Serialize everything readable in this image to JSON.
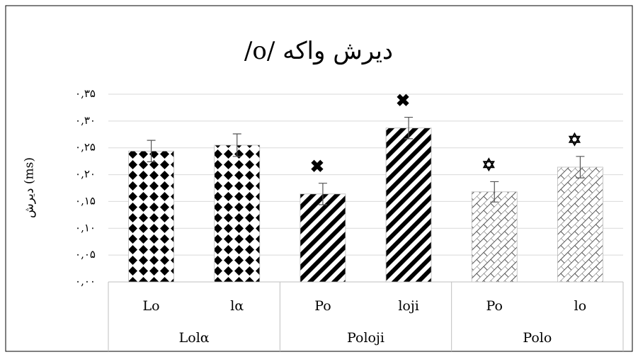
{
  "chart_data": {
    "type": "bar",
    "title": "دیرش واکه /o/",
    "y_label": "دیرش (ms)",
    "categories": [
      "Lo",
      "lα",
      "Po",
      "loji",
      "Po",
      "lo"
    ],
    "values": [
      0.244,
      0.255,
      0.164,
      0.287,
      0.168,
      0.214
    ],
    "errors": [
      0.02,
      0.021,
      0.02,
      0.02,
      0.019,
      0.02
    ],
    "annotations": [
      null,
      null,
      "✖",
      "✖",
      "✡",
      "✡"
    ],
    "patterns": [
      "diamond",
      "diamond",
      "stripe",
      "stripe",
      "lattice",
      "lattice"
    ],
    "groups": [
      {
        "label": "Lolα",
        "span": 2
      },
      {
        "label": "Poloji",
        "span": 2
      },
      {
        "label": "Polo",
        "span": 2
      }
    ],
    "color": "#000000",
    "ylim": [
      0,
      0.35
    ],
    "yticks": [
      {
        "value": 0,
        "label": "۰,۰۰"
      },
      {
        "value": 0.05,
        "label": "۰,۰۵"
      },
      {
        "value": 0.1,
        "label": "۰,۱۰"
      },
      {
        "value": 0.15,
        "label": "۰,۱۵"
      },
      {
        "value": 0.2,
        "label": "۰,۲۰"
      },
      {
        "value": 0.25,
        "label": "۰,۲۵"
      },
      {
        "value": 0.3,
        "label": "۰,۳۰"
      },
      {
        "value": 0.35,
        "label": "۰,۳۵"
      }
    ],
    "grid": true
  }
}
